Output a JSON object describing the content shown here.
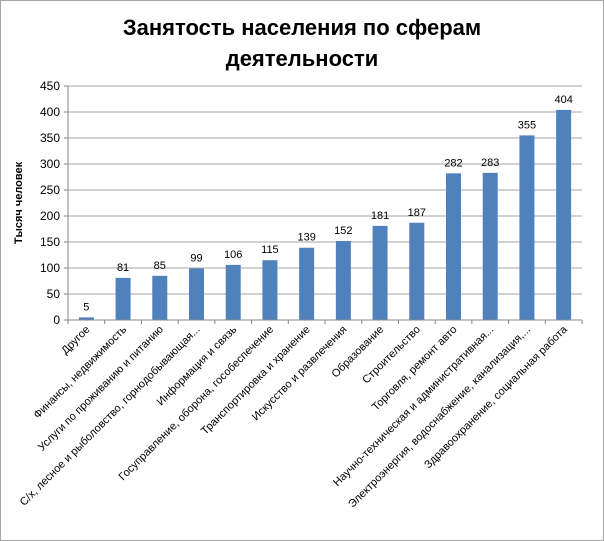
{
  "chart_data": {
    "type": "bar",
    "title_lines": [
      "Занятость населения по сферам",
      "деятельности"
    ],
    "xlabel": "",
    "ylabel": "Тысяч человек",
    "ylim": [
      0,
      450
    ],
    "yticks": [
      0,
      50,
      100,
      150,
      200,
      250,
      300,
      350,
      400,
      450
    ],
    "grid": true,
    "legend": "none",
    "bar_color": "#4f81bd",
    "grid_color": "#a6a6a6",
    "categories": [
      "Другое",
      "Финансы, недвижимость",
      "Услуги по проживанию и питанию",
      "С/х, лесное и рыболовство, горнодобывающая...",
      "Информация и связь",
      "Госуправление, оборона, гособеспечение",
      "Транспортировка и хранение",
      "Искусство и развлечения",
      "Образование",
      "Строительство",
      "Торговля, ремонт авто",
      "Научно-техническая и административная...",
      "Электроэнергия, водоснабжение, канализация,...",
      "Здравоохранение, социальная работа"
    ],
    "values": [
      5,
      81,
      85,
      99,
      106,
      115,
      139,
      152,
      181,
      187,
      282,
      283,
      355,
      404
    ]
  }
}
